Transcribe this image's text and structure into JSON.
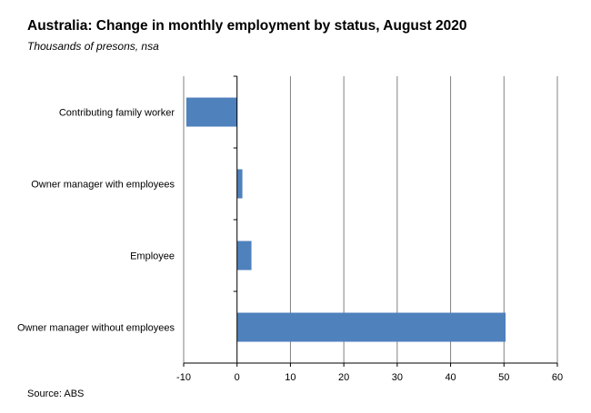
{
  "title": "Australia: Change in monthly employment by status, August 2020",
  "subtitle": "Thousands of presons, nsa",
  "source": "Source: ABS",
  "colors": {
    "bar": "#4F81BD",
    "grid": "#808080",
    "axis": "#000000"
  },
  "chart_data": {
    "type": "bar",
    "orientation": "horizontal",
    "categories": [
      "Contributing family worker",
      "Owner manager with employees",
      "Employee",
      "Owner manager without employees"
    ],
    "values": [
      -9.5,
      1.0,
      2.7,
      50.3
    ],
    "xlim": [
      -10,
      60
    ],
    "xticks": [
      -10,
      0,
      10,
      20,
      30,
      40,
      50,
      60
    ],
    "grid": "vertical",
    "legend": "none"
  }
}
